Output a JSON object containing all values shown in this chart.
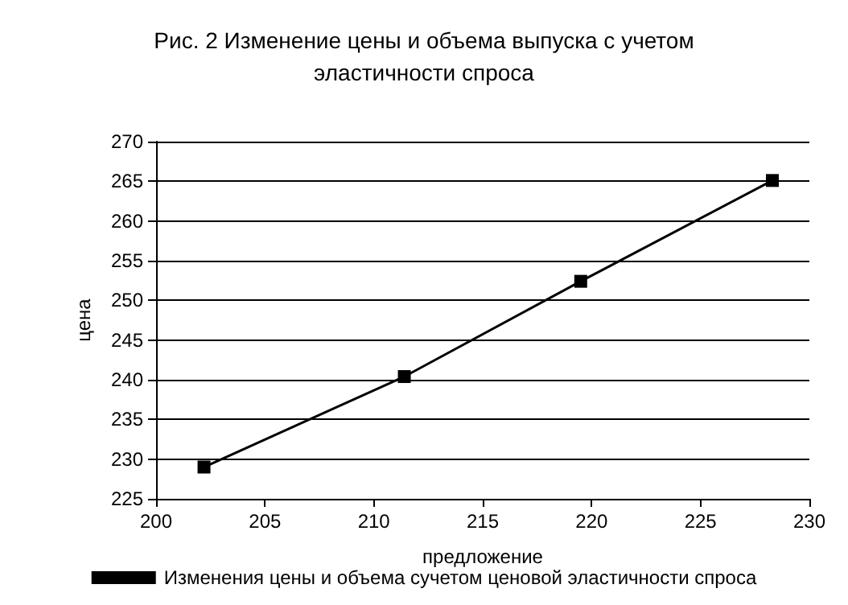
{
  "chart_data": {
    "type": "line",
    "title": "Рис. 2 Изменение цены и объема выпуска с учетом\nэластичности спроса",
    "xlabel": "предложение",
    "ylabel": "цена",
    "x": [
      202.2,
      211.4,
      219.5,
      228.3
    ],
    "series": [
      {
        "name": "Изменения цены и объема сучетом ценовой эластичности спроса",
        "color": "#000000",
        "values": [
          229.0,
          240.4,
          252.4,
          265.1
        ]
      }
    ],
    "xlim": [
      200,
      230
    ],
    "xticks": [
      200,
      205,
      210,
      215,
      220,
      225,
      230
    ],
    "ylim": [
      225,
      270
    ],
    "yticks": [
      225,
      230,
      235,
      240,
      245,
      250,
      255,
      260,
      265,
      270
    ],
    "grid": "y",
    "legend": "bottom",
    "marker": "square",
    "line_style": "solid"
  }
}
